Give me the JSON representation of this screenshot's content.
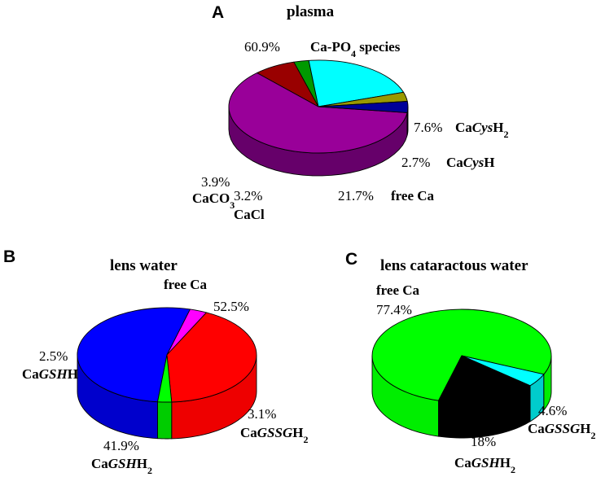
{
  "chart_data": [
    {
      "type": "pie",
      "panel": "A",
      "title": "plasma",
      "slices": [
        {
          "name": "Ca-PO4 species",
          "value": 60.9,
          "pct_label": "60.9%",
          "label_parts": [
            {
              "t": "Ca-PO"
            },
            {
              "t": "4",
              "sub": true
            },
            {
              "t": " species"
            }
          ],
          "color": "#990099",
          "side": "#66006a"
        },
        {
          "name": "CaCysH2",
          "value": 7.6,
          "pct_label": "7.6%",
          "label_parts": [
            {
              "t": "Ca"
            },
            {
              "t": "Cys",
              "it": true
            },
            {
              "t": "H"
            },
            {
              "t": "2",
              "sub": true
            }
          ],
          "color": "#990000",
          "side": "#660000"
        },
        {
          "name": "CaCysH",
          "value": 2.7,
          "pct_label": "2.7%",
          "label_parts": [
            {
              "t": "Ca"
            },
            {
              "t": "Cys",
              "it": true
            },
            {
              "t": "H"
            }
          ],
          "color": "#009900",
          "side": "#006600"
        },
        {
          "name": "free Ca",
          "value": 21.7,
          "pct_label": "21.7%",
          "label_parts": [
            {
              "t": "free Ca"
            }
          ],
          "color": "#00ffff",
          "side": "#00cccc"
        },
        {
          "name": "CaCl",
          "value": 3.2,
          "pct_label": "3.2%",
          "label_parts": [
            {
              "t": "CaCl"
            }
          ],
          "color": "#999900",
          "side": "#666600"
        },
        {
          "name": "CaCO3",
          "value": 3.9,
          "pct_label": "3.9%",
          "label_parts": [
            {
              "t": "CaCO"
            },
            {
              "t": "3",
              "sub": true
            }
          ],
          "color": "#000099",
          "side": "#000066"
        }
      ]
    },
    {
      "type": "pie",
      "panel": "B",
      "title": "lens water",
      "slices": [
        {
          "name": "free Ca",
          "value": 52.5,
          "pct_label": "52.5%",
          "label_parts": [
            {
              "t": "free Ca"
            }
          ],
          "color": "#0000ff",
          "side": "#0000cc"
        },
        {
          "name": "CaGSSGH2",
          "value": 3.1,
          "pct_label": "3.1%",
          "label_parts": [
            {
              "t": "Ca"
            },
            {
              "t": "GSSG",
              "it": true
            },
            {
              "t": "H"
            },
            {
              "t": "2",
              "sub": true
            }
          ],
          "color": "#ff00ff",
          "side": "#cc00cc"
        },
        {
          "name": "CaGSHH2",
          "value": 41.9,
          "pct_label": "41.9%",
          "label_parts": [
            {
              "t": "Ca"
            },
            {
              "t": "GSH",
              "it": true
            },
            {
              "t": "H"
            },
            {
              "t": "2",
              "sub": true
            }
          ],
          "color": "#ff0000",
          "side": "#ee0000"
        },
        {
          "name": "CaGSHH",
          "value": 2.5,
          "pct_label": "2.5%",
          "label_parts": [
            {
              "t": "Ca"
            },
            {
              "t": "GSH",
              "it": true
            },
            {
              "t": "H"
            }
          ],
          "color": "#00ff00",
          "side": "#00cc00"
        }
      ]
    },
    {
      "type": "pie",
      "panel": "C",
      "title": "lens cataractous water",
      "slices": [
        {
          "name": "free Ca",
          "value": 77.4,
          "pct_label": "77.4%",
          "label_parts": [
            {
              "t": "free Ca"
            }
          ],
          "color": "#00ff00",
          "side": "#00ee00"
        },
        {
          "name": "CaGSSGH2",
          "value": 4.6,
          "pct_label": "4.6%",
          "label_parts": [
            {
              "t": "Ca"
            },
            {
              "t": "GSSG",
              "it": true
            },
            {
              "t": "H"
            },
            {
              "t": "2",
              "sub": true
            }
          ],
          "color": "#00ffff",
          "side": "#00cccc"
        },
        {
          "name": "CaGSHH2",
          "value": 18,
          "pct_label": "18%",
          "label_parts": [
            {
              "t": "Ca"
            },
            {
              "t": "GSH",
              "it": true
            },
            {
              "t": "H"
            },
            {
              "t": "2",
              "sub": true
            }
          ],
          "color": "#000000",
          "side": "#000000"
        }
      ]
    }
  ]
}
